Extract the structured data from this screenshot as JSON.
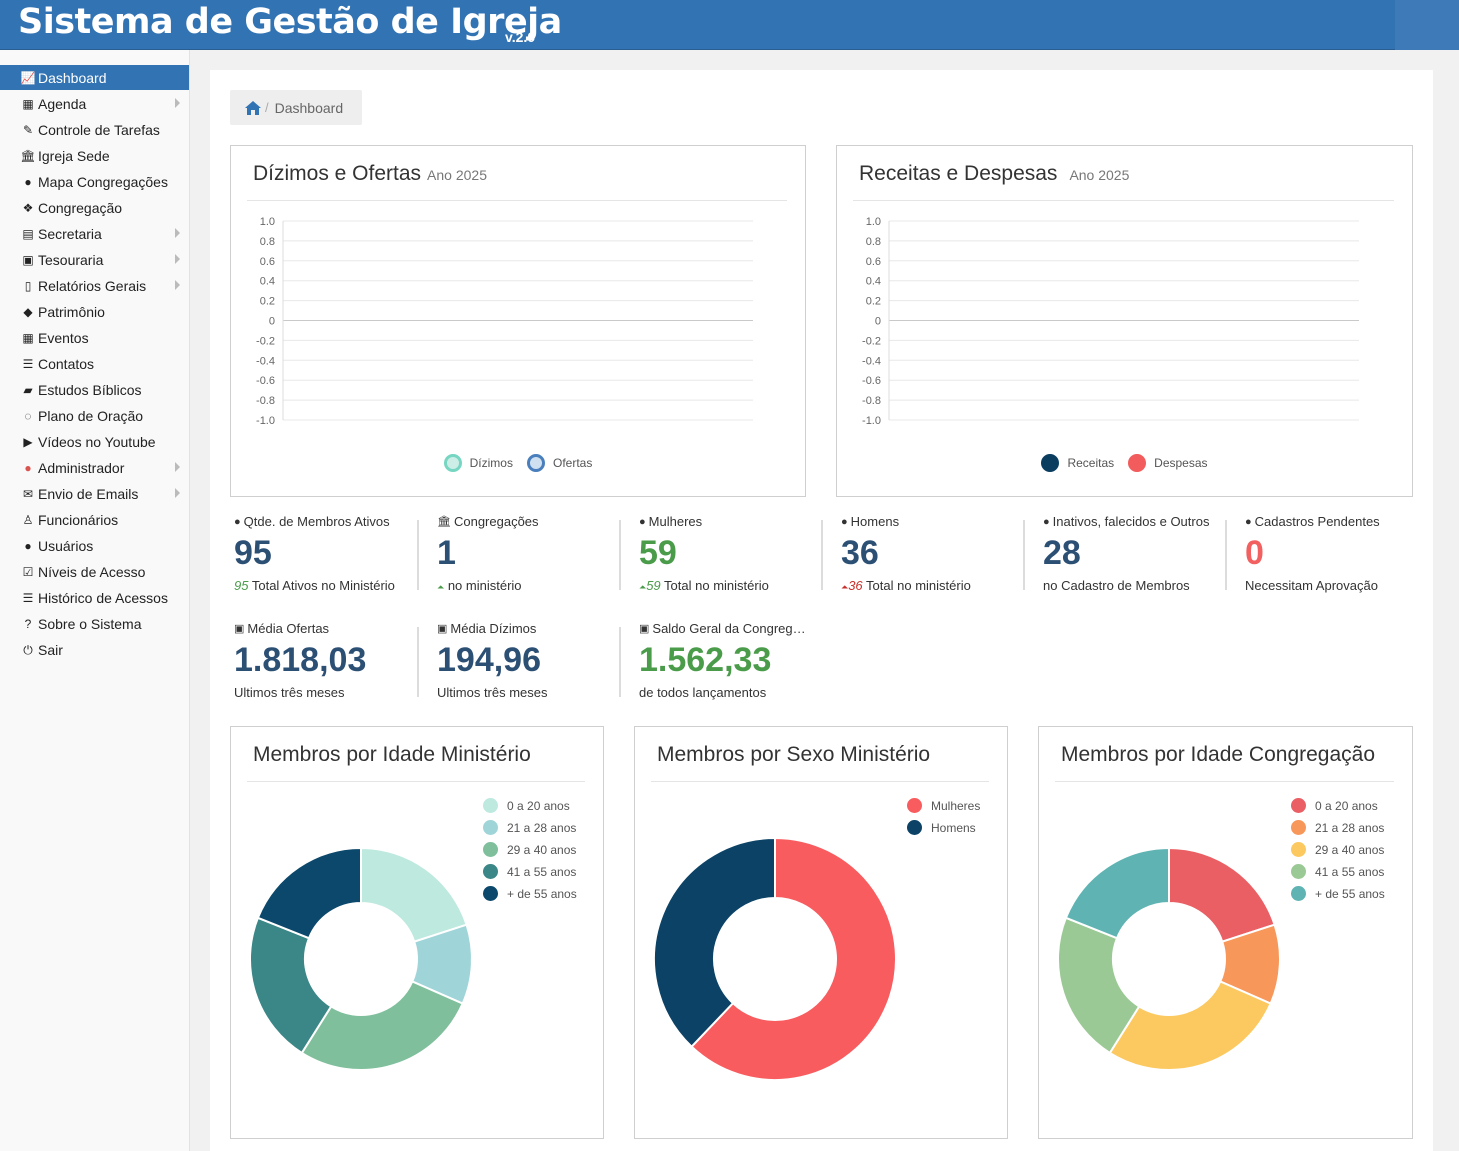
{
  "header": {
    "title": "Sistema de Gestão de Igreja",
    "version": "v.2.0"
  },
  "sidebar": {
    "items": [
      {
        "label": "Dashboard",
        "icon": "line-chart-icon",
        "glyph": "📈",
        "active": true,
        "arrow": false
      },
      {
        "label": "Agenda",
        "icon": "calendar-icon",
        "glyph": "▦",
        "active": false,
        "arrow": true
      },
      {
        "label": "Controle de Tarefas",
        "icon": "plug-icon",
        "glyph": "✎",
        "active": false,
        "arrow": false
      },
      {
        "label": "Igreja Sede",
        "icon": "institution-icon",
        "glyph": "🏛",
        "active": false,
        "arrow": false
      },
      {
        "label": "Mapa Congregações",
        "icon": "globe-icon",
        "glyph": "●",
        "active": false,
        "arrow": false
      },
      {
        "label": "Congregação",
        "icon": "cubes-icon",
        "glyph": "❖",
        "active": false,
        "arrow": false
      },
      {
        "label": "Secretaria",
        "icon": "address-card-icon",
        "glyph": "▤",
        "active": false,
        "arrow": true
      },
      {
        "label": "Tesouraria",
        "icon": "money-icon",
        "glyph": "▣",
        "active": false,
        "arrow": true
      },
      {
        "label": "Relatórios Gerais",
        "icon": "file-text-icon",
        "glyph": "▯",
        "active": false,
        "arrow": true
      },
      {
        "label": "Patrimônio",
        "icon": "tag-icon",
        "glyph": "◆",
        "active": false,
        "arrow": false
      },
      {
        "label": "Eventos",
        "icon": "calendar-check-icon",
        "glyph": "▦",
        "active": false,
        "arrow": false
      },
      {
        "label": "Contatos",
        "icon": "list-icon",
        "glyph": "☰",
        "active": false,
        "arrow": false
      },
      {
        "label": "Estudos Bíblicos",
        "icon": "book-icon",
        "glyph": "▰",
        "active": false,
        "arrow": false
      },
      {
        "label": "Plano de Oração",
        "icon": "comments-icon",
        "glyph": "◌",
        "active": false,
        "arrow": false
      },
      {
        "label": "Vídeos no Youtube",
        "icon": "youtube-play-icon",
        "glyph": "▶",
        "active": false,
        "arrow": false
      },
      {
        "label": "Administrador",
        "icon": "user-circle-icon",
        "glyph": "●",
        "active": false,
        "arrow": true,
        "iconColor": "#d9534f"
      },
      {
        "label": "Envio de Emails",
        "icon": "envelope-icon",
        "glyph": "✉",
        "active": false,
        "arrow": true
      },
      {
        "label": "Funcionários",
        "icon": "user-outline-icon",
        "glyph": "♙",
        "active": false,
        "arrow": false
      },
      {
        "label": "Usuários",
        "icon": "user-icon",
        "glyph": "●",
        "active": false,
        "arrow": false
      },
      {
        "label": "Níveis de Acesso",
        "icon": "check-square-icon",
        "glyph": "☑",
        "active": false,
        "arrow": false
      },
      {
        "label": "Histórico de Acessos",
        "icon": "list-icon",
        "glyph": "☰",
        "active": false,
        "arrow": false
      },
      {
        "label": "Sobre o Sistema",
        "icon": "question-circle-icon",
        "glyph": "?",
        "active": false,
        "arrow": false
      },
      {
        "label": "Sair",
        "icon": "power-off-icon",
        "glyph": "⏻",
        "active": false,
        "arrow": false
      }
    ]
  },
  "breadcrumb": {
    "current": "Dashboard"
  },
  "charts_top": [
    {
      "title": "Dízimos e Ofertas",
      "subtitle": "Ano 2025",
      "legend": [
        {
          "label": "Dízimos",
          "color": "#76d6c2",
          "fill": "#cdeee6"
        },
        {
          "label": "Ofertas",
          "color": "#4a7fbd",
          "fill": "#cfe0f0"
        }
      ]
    },
    {
      "title": "Receitas e Despesas",
      "subtitle": "Ano 2025",
      "legend": [
        {
          "label": "Receitas",
          "color": "#0b3d5f",
          "fill": "#0b3d5f"
        },
        {
          "label": "Despesas",
          "color": "#f25c5c",
          "fill": "#f25c5c"
        }
      ]
    }
  ],
  "chart_data": [
    {
      "type": "line",
      "title": "Dízimos e Ofertas",
      "subtitle": "Ano 2025",
      "yticks": [
        "1.0",
        "0.8",
        "0.6",
        "0.4",
        "0.2",
        "0",
        "-0.2",
        "-0.4",
        "-0.6",
        "-0.8",
        "-1.0"
      ],
      "ylim": [
        -1.0,
        1.0
      ],
      "series": [
        {
          "name": "Dízimos",
          "values": []
        },
        {
          "name": "Ofertas",
          "values": []
        }
      ],
      "grid": true,
      "legend": "bottom"
    },
    {
      "type": "line",
      "title": "Receitas e Despesas",
      "subtitle": "Ano 2025",
      "yticks": [
        "1.0",
        "0.8",
        "0.6",
        "0.4",
        "0.2",
        "0",
        "-0.2",
        "-0.4",
        "-0.6",
        "-0.8",
        "-1.0"
      ],
      "ylim": [
        -1.0,
        1.0
      ],
      "series": [
        {
          "name": "Receitas",
          "values": []
        },
        {
          "name": "Despesas",
          "values": []
        }
      ],
      "grid": true,
      "legend": "bottom"
    },
    {
      "type": "pie",
      "title": "Membros por Idade Ministério",
      "categories": [
        "0 a 20 anos",
        "21 a 28 anos",
        "29 a 40 anos",
        "41 a 55 anos",
        "+ de 55 anos"
      ],
      "values": [
        19,
        11,
        26,
        21,
        18
      ],
      "colors": [
        "#bde9df",
        "#9fd5d9",
        "#7fbf9c",
        "#3b8686",
        "#0b486b"
      ],
      "legend": "top-right"
    },
    {
      "type": "pie",
      "title": "Membros por Sexo Ministério",
      "categories": [
        "Mulheres",
        "Homens"
      ],
      "values": [
        59,
        36
      ],
      "colors": [
        "#f85c5f",
        "#0b4266"
      ],
      "legend": "top-right"
    },
    {
      "type": "pie",
      "title": "Membros por Idade Congregação",
      "categories": [
        "0 a 20 anos",
        "21 a 28 anos",
        "29 a 40 anos",
        "41 a 55 anos",
        "+ de 55 anos"
      ],
      "values": [
        19,
        11,
        26,
        21,
        18
      ],
      "colors": [
        "#e95f64",
        "#f7975a",
        "#fbc95f",
        "#9bc995",
        "#5fb3b3"
      ],
      "legend": "top-right"
    }
  ],
  "stats": [
    {
      "label": "Qtde. de Membros Ativos",
      "icon": "user-icon",
      "glyph": "●",
      "value": "95",
      "valueStyle": "",
      "subPrefix": "",
      "subItalic": "95",
      "subItalicClass": "g",
      "subText": " Total Ativos no Ministério"
    },
    {
      "label": "Congregações",
      "icon": "institution-icon",
      "glyph": "🏛",
      "value": "1",
      "valueStyle": "",
      "subPrefix": "⏶",
      "subItalic": "",
      "subItalicClass": "g",
      "subText": " no ministério"
    },
    {
      "label": "Mulheres",
      "icon": "user-icon",
      "glyph": "●",
      "value": "59",
      "valueStyle": "green",
      "subPrefix": "⏶",
      "subItalic": "59",
      "subItalicClass": "g",
      "subText": " Total no ministério"
    },
    {
      "label": "Homens",
      "icon": "user-icon",
      "glyph": "●",
      "value": "36",
      "valueStyle": "",
      "subPrefix": "⏶",
      "subItalic": "36",
      "subItalicClass": "r",
      "subText": " Total no ministério"
    },
    {
      "label": "Inativos, falecidos e Outros",
      "icon": "user-icon",
      "glyph": "●",
      "value": "28",
      "valueStyle": "",
      "subPrefix": "",
      "subItalic": "",
      "subItalicClass": "g",
      "subText": "no Cadastro de Membros"
    },
    {
      "label": "Cadastros Pendentes",
      "icon": "user-icon",
      "glyph": "●",
      "value": "0",
      "valueStyle": "red",
      "subPrefix": "",
      "subItalic": "",
      "subItalicClass": "g",
      "subText": "Necessitam Aprovação"
    },
    {
      "label": "Média Ofertas",
      "icon": "money-icon",
      "glyph": "▣",
      "value": "1.818,03",
      "valueStyle": "",
      "subPrefix": "",
      "subItalic": "",
      "subItalicClass": "g",
      "subText": "Ultimos três meses"
    },
    {
      "label": "Média Dízimos",
      "icon": "money-icon",
      "glyph": "▣",
      "value": "194,96",
      "valueStyle": "",
      "subPrefix": "",
      "subItalic": "",
      "subItalicClass": "g",
      "subText": "Ultimos três meses"
    },
    {
      "label": "Saldo Geral da Congreg…",
      "icon": "money-icon",
      "glyph": "▣",
      "value": "1.562,33",
      "valueStyle": "green",
      "subPrefix": "",
      "subItalic": "",
      "subItalicClass": "g",
      "subText": "de todos lançamentos"
    }
  ]
}
